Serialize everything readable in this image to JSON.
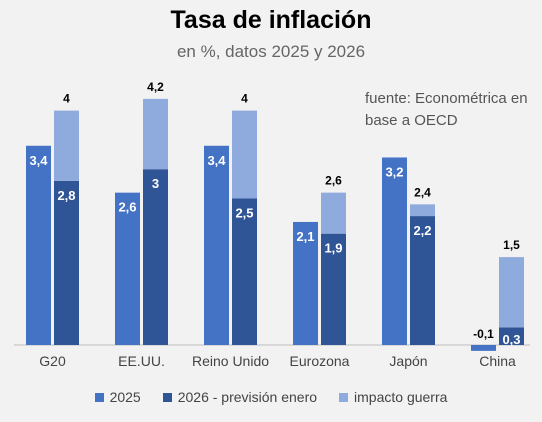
{
  "chart_data": {
    "type": "bar",
    "title": "Tasa de inflación",
    "subtitle": "en %, datos 2025 y 2026",
    "annotation": "fuente: Econométrica en base a OECD",
    "categories": [
      "G20",
      "EE.UU.",
      "Reino Unido",
      "Eurozona",
      "Japón",
      "China"
    ],
    "series": [
      {
        "name": "2025",
        "color": "#4472c4",
        "values": [
          3.4,
          2.6,
          3.4,
          2.1,
          3.2,
          -0.1
        ],
        "labels": [
          "3,4",
          "2,6",
          "3,4",
          "2,1",
          "3,2",
          "-0,1"
        ]
      },
      {
        "name": "2026 - previsión enero",
        "color": "#2f5597",
        "values": [
          2.8,
          3,
          2.5,
          1.9,
          2.2,
          0.3
        ],
        "labels": [
          "2,8",
          "3",
          "2,5",
          "1,9",
          "2,2",
          "0,3"
        ]
      },
      {
        "name": "impacto guerra",
        "color": "#8faadc",
        "values": [
          1.2,
          1.2,
          1.5,
          0.7,
          0.2,
          1.2
        ],
        "totals": [
          4,
          4.2,
          4,
          2.6,
          2.4,
          1.5
        ],
        "total_labels": [
          "4",
          "4,2",
          "4",
          "2,6",
          "2,4",
          "1,5"
        ]
      }
    ],
    "stacked_series": [
      "2026 - previsión enero",
      "impacto guerra"
    ],
    "ylim": [
      -0.1,
      4.2
    ],
    "grid": false,
    "legend_position": "bottom"
  }
}
